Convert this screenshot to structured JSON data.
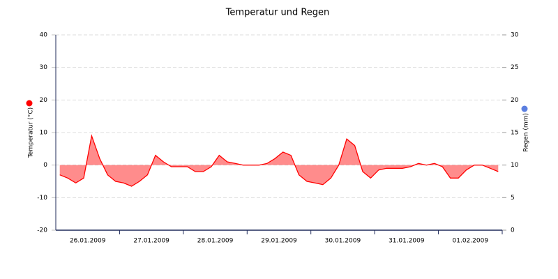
{
  "chart_data": {
    "type": "area",
    "title": "Temperatur und Regen",
    "y_label": "Temperatur (°C)",
    "y2_label": "Regen (mm)",
    "y_color": "#ff0000",
    "y2_color": "#5b7fe0",
    "x": [
      null,
      null,
      null,
      null,
      "26.01.2009",
      null,
      null,
      null,
      null,
      null,
      null,
      null,
      "27.01.2009",
      null,
      null,
      null,
      null,
      null,
      null,
      null,
      "28.01.2009",
      null,
      null,
      null,
      null,
      null,
      null,
      null,
      "29.01.2009",
      null,
      null,
      null,
      null,
      null,
      null,
      null,
      "30.01.2009",
      null,
      null,
      null,
      null,
      null,
      null,
      null,
      "31.01.2009",
      null,
      null,
      null,
      null,
      null,
      null,
      null,
      "01.02.2009",
      null,
      null,
      null
    ],
    "series": [
      {
        "name": "Temperatur (°C)",
        "color": "#ff0000",
        "values": [
          -3,
          -4,
          -5.5,
          -4,
          9,
          2,
          -3,
          -5,
          -5.5,
          -6.5,
          -5,
          -3,
          3,
          1,
          -0.5,
          -0.5,
          -0.5,
          -2,
          -2,
          -0.5,
          3,
          1,
          0.5,
          0,
          0,
          0,
          0.5,
          2,
          4,
          3,
          -3,
          -5,
          -5.5,
          -6,
          -4,
          0,
          8,
          6,
          -2,
          -4,
          -1.5,
          -1,
          -1,
          -1,
          -0.5,
          0.5,
          0,
          0.5,
          -0.5,
          -4,
          -4,
          -1.5,
          0,
          0,
          -1,
          -2
        ]
      }
    ],
    "ylim": [
      -20,
      40
    ],
    "yticks": [
      -20,
      -10,
      0,
      10,
      20,
      30,
      40
    ],
    "y2lim": [
      0,
      30
    ],
    "y2ticks": [
      0,
      5,
      10,
      15,
      20,
      25,
      30
    ],
    "grid": true
  }
}
